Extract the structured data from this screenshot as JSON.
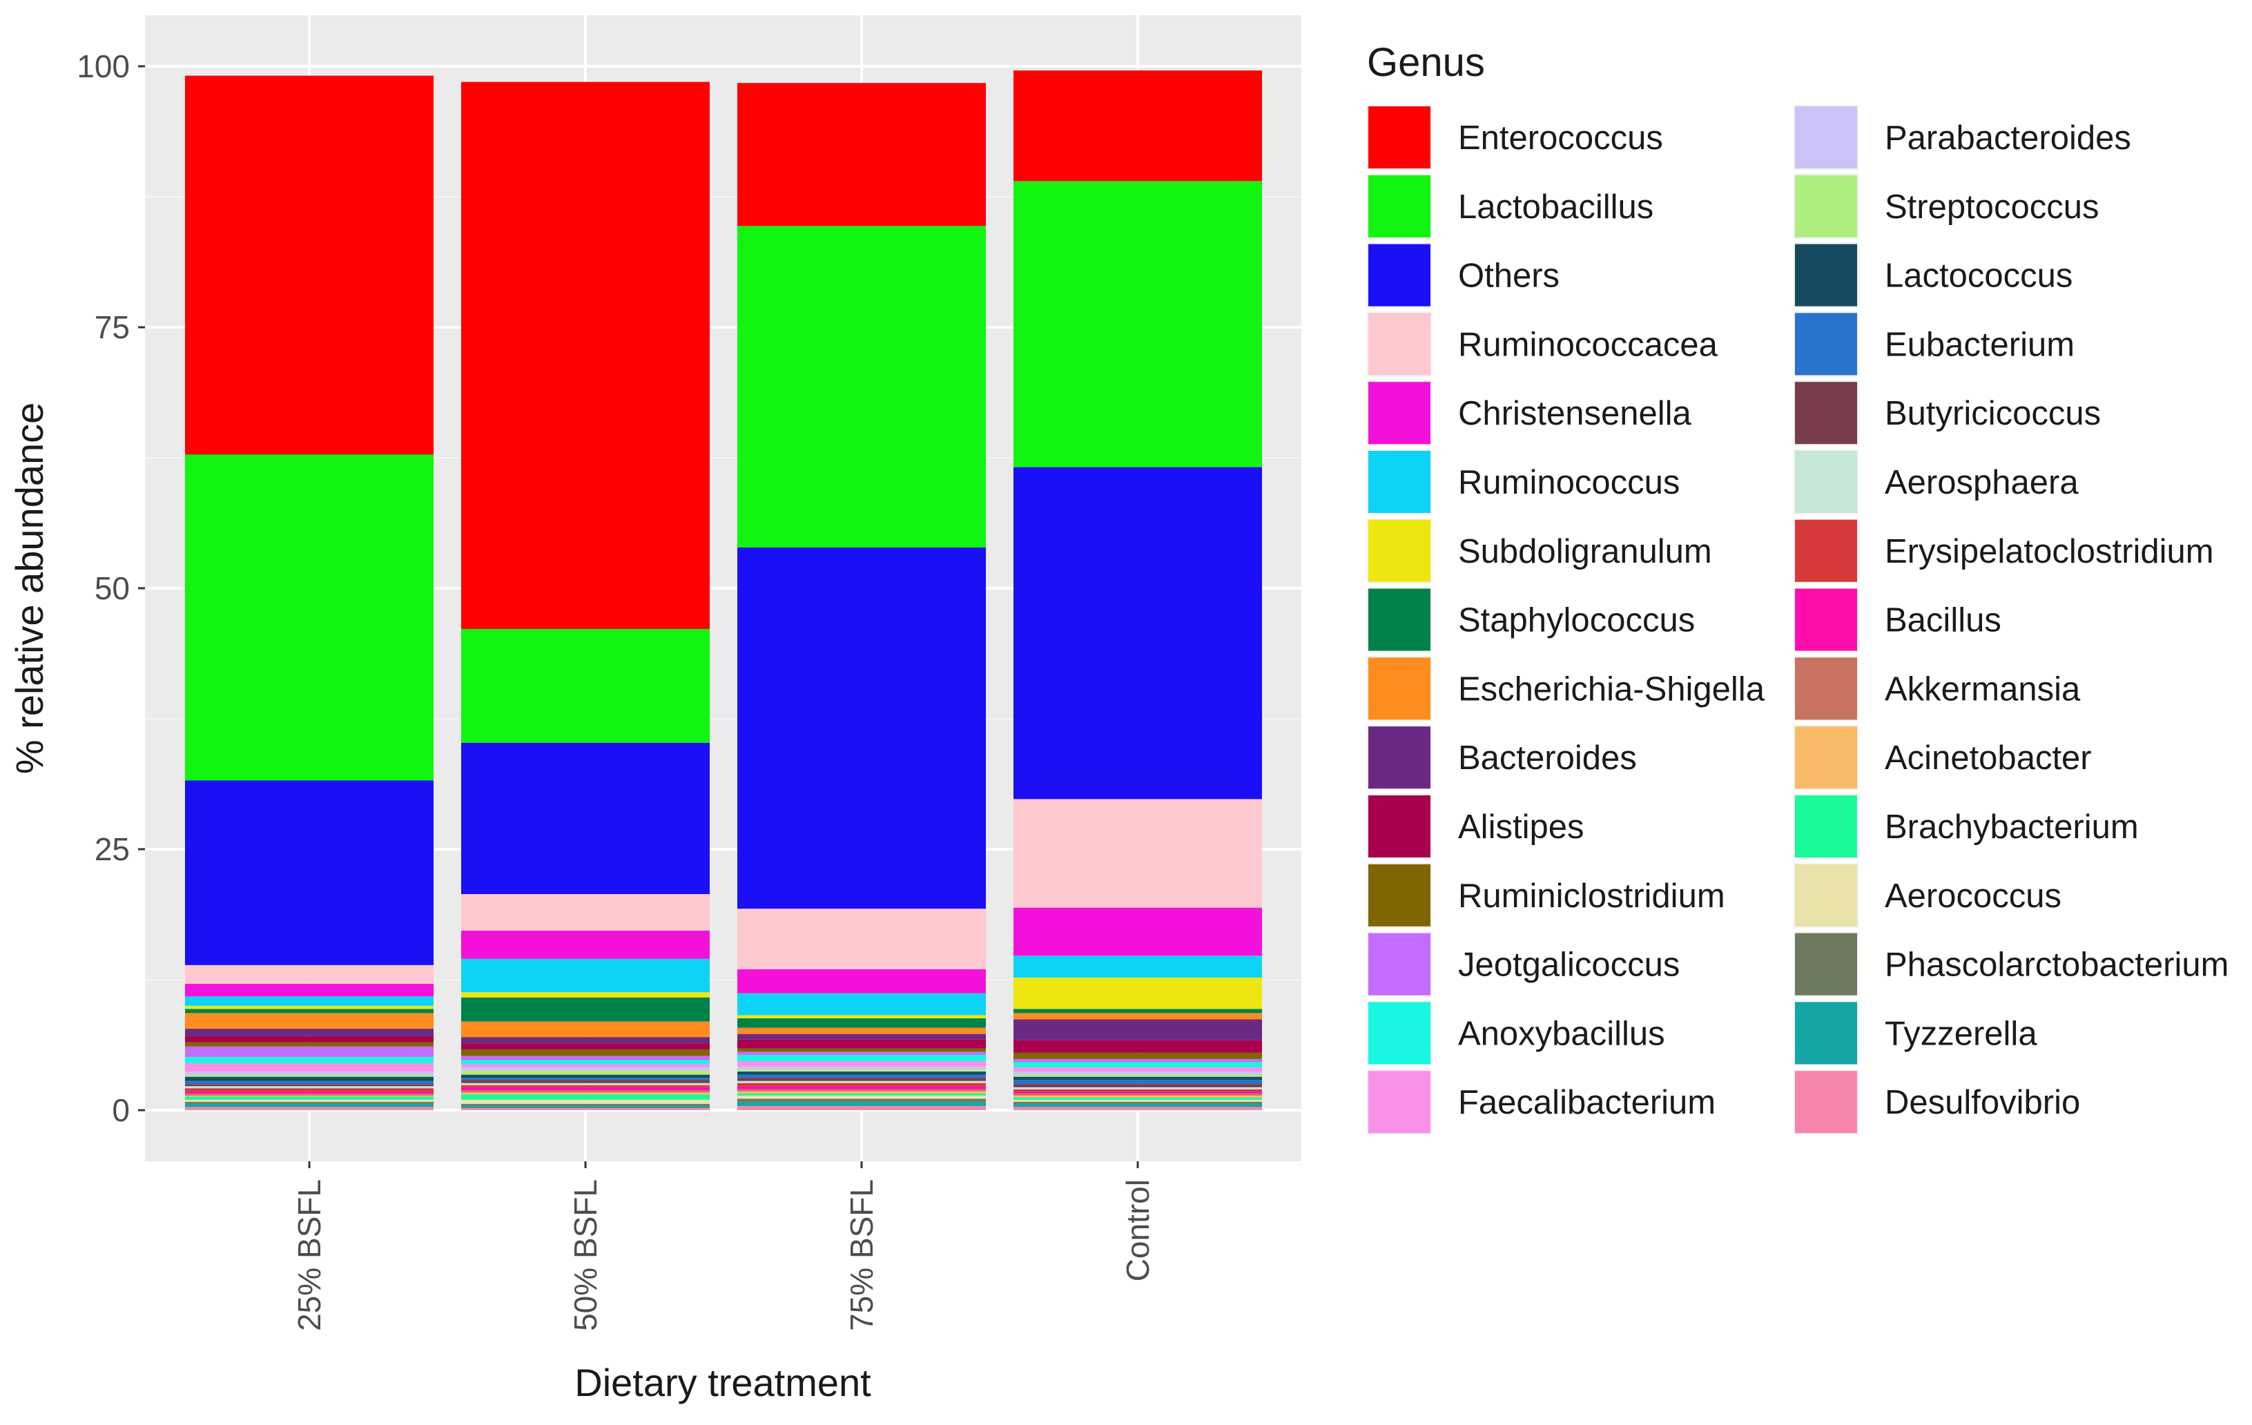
{
  "chart_data": {
    "type": "bar",
    "stacked": true,
    "xlabel": "Dietary treatment",
    "ylabel": "% relative abundance",
    "ylim": [
      0,
      105
    ],
    "yticks": [
      0,
      25,
      50,
      75,
      100
    ],
    "categories": [
      "25% BSFL",
      "50% BSFL",
      "75% BSFL",
      "Control"
    ],
    "legend": {
      "title": "Genus",
      "placement": "right"
    },
    "series": [
      {
        "name": "Enterococcus",
        "color": "#FF0000",
        "values": [
          36.3,
          52.4,
          13.7,
          10.6
        ]
      },
      {
        "name": "Lactobacillus",
        "color": "#11F511",
        "values": [
          31.2,
          10.9,
          30.8,
          27.4
        ]
      },
      {
        "name": "Others",
        "color": "#1A0FF5",
        "values": [
          17.7,
          14.5,
          34.6,
          31.8
        ]
      },
      {
        "name": "Ruminococcacea",
        "color": "#FDC8CE",
        "values": [
          1.8,
          3.5,
          5.8,
          10.4
        ]
      },
      {
        "name": "Christensenella",
        "color": "#F410DB",
        "values": [
          1.2,
          2.7,
          2.3,
          4.6
        ]
      },
      {
        "name": "Ruminococcus",
        "color": "#0DD3F7",
        "values": [
          0.9,
          3.2,
          2.1,
          2.1
        ]
      },
      {
        "name": "Subdoligranulum",
        "color": "#EDE70F",
        "values": [
          0.3,
          0.5,
          0.3,
          3.0
        ]
      },
      {
        "name": "Staphylococcus",
        "color": "#00834B",
        "values": [
          0.4,
          2.3,
          0.9,
          0.4
        ]
      },
      {
        "name": "Escherichia-Shigella",
        "color": "#FF8C1E",
        "values": [
          1.5,
          1.5,
          0.6,
          0.6
        ]
      },
      {
        "name": "Bacteroides",
        "color": "#6A2A84",
        "values": [
          0.7,
          0.6,
          0.5,
          2.0
        ]
      },
      {
        "name": "Alistipes",
        "color": "#A8004E",
        "values": [
          0.6,
          0.6,
          0.9,
          1.2
        ]
      },
      {
        "name": "Ruminiclostridium",
        "color": "#7F6600",
        "values": [
          0.4,
          0.6,
          0.3,
          0.6
        ]
      },
      {
        "name": "Jeotgalicoccus",
        "color": "#C46CFF",
        "values": [
          1.0,
          0.4,
          0.3,
          0.3
        ]
      },
      {
        "name": "Anoxybacillus",
        "color": "#19F6E2",
        "values": [
          0.6,
          0.4,
          0.6,
          0.5
        ]
      },
      {
        "name": "Faecalibacterium",
        "color": "#F990E8",
        "values": [
          0.8,
          0.3,
          0.5,
          0.4
        ]
      },
      {
        "name": "Parabacteroides",
        "color": "#CBC3F7",
        "values": [
          0.3,
          0.3,
          0.3,
          0.3
        ]
      },
      {
        "name": "Streptococcus",
        "color": "#AEEE7E",
        "values": [
          0.2,
          0.4,
          0.2,
          0.2
        ]
      },
      {
        "name": "Lactococcus",
        "color": "#164B5F",
        "values": [
          0.4,
          0.3,
          0.3,
          0.3
        ]
      },
      {
        "name": "Eubacterium",
        "color": "#2873CC",
        "values": [
          0.3,
          0.2,
          0.3,
          0.4
        ]
      },
      {
        "name": "Butyricicoccus",
        "color": "#783C4C",
        "values": [
          0.2,
          0.3,
          0.3,
          0.3
        ]
      },
      {
        "name": "Aerosphaera",
        "color": "#C6E6D6",
        "values": [
          0.2,
          0.2,
          0.2,
          0.2
        ]
      },
      {
        "name": "Erysipelatoclostridium",
        "color": "#D63939",
        "values": [
          0.3,
          0.2,
          0.3,
          0.2
        ]
      },
      {
        "name": "Bacillus",
        "color": "#FF0CAC",
        "values": [
          0.2,
          0.3,
          0.3,
          0.2
        ]
      },
      {
        "name": "Akkermansia",
        "color": "#C87360",
        "values": [
          0.2,
          0.2,
          0.2,
          0.2
        ]
      },
      {
        "name": "Acinetobacter",
        "color": "#F9BA68",
        "values": [
          0.1,
          0.2,
          0.2,
          0.2
        ]
      },
      {
        "name": "Brachybacterium",
        "color": "#18F998",
        "values": [
          0.3,
          0.5,
          0.2,
          0.2
        ]
      },
      {
        "name": "Aerococcus",
        "color": "#E9E3A9",
        "values": [
          0.2,
          0.4,
          0.3,
          0.2
        ]
      },
      {
        "name": "Phascolarctobacterium",
        "color": "#6D7A60",
        "values": [
          0.2,
          0.2,
          0.3,
          0.2
        ]
      },
      {
        "name": "Tyzzerella",
        "color": "#16A5A5",
        "values": [
          0.3,
          0.2,
          0.4,
          0.3
        ]
      },
      {
        "name": "Desulfovibrio",
        "color": "#F786AA",
        "values": [
          0.3,
          0.2,
          0.4,
          0.3
        ]
      }
    ]
  }
}
